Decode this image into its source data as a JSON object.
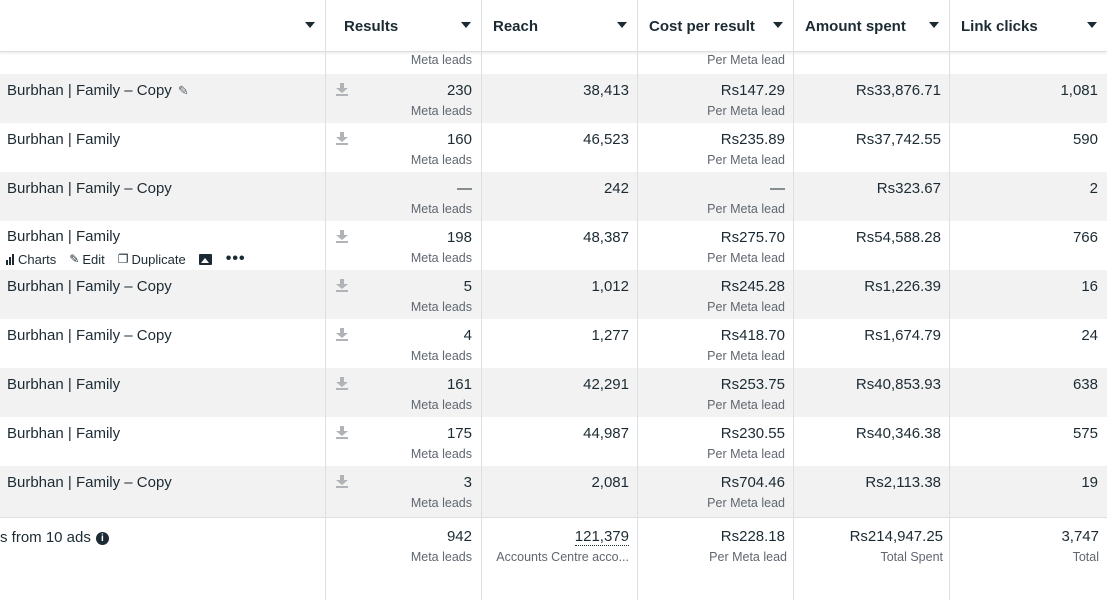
{
  "columns": {
    "first": "",
    "results": "Results",
    "reach": "Reach",
    "cost_per_result": "Cost per result",
    "amount_spent": "Amount spent",
    "link_clicks": "Link clicks"
  },
  "top_partial": {
    "results_sub": "Meta leads",
    "cost_sub": "Per Meta lead"
  },
  "rows": [
    {
      "name": "Burbhan | Family – Copy",
      "results": "230",
      "results_sub": "Meta leads",
      "reach": "38,413",
      "cost": "Rs147.29",
      "cost_sub": "Per Meta lead",
      "spent": "Rs33,876.71",
      "clicks": "1,081"
    },
    {
      "name": "Burbhan | Family",
      "results": "160",
      "results_sub": "Meta leads",
      "reach": "46,523",
      "cost": "Rs235.89",
      "cost_sub": "Per Meta lead",
      "spent": "Rs37,742.55",
      "clicks": "590"
    },
    {
      "name": "Burbhan | Family – Copy",
      "results": "—",
      "results_sub": "Meta leads",
      "reach": "242",
      "cost": "—",
      "cost_sub": "Per Meta lead",
      "spent": "Rs323.67",
      "clicks": "2"
    },
    {
      "name": "Burbhan | Family",
      "results": "198",
      "results_sub": "Meta leads",
      "reach": "48,387",
      "cost": "Rs275.70",
      "cost_sub": "Per Meta lead",
      "spent": "Rs54,588.28",
      "clicks": "766"
    },
    {
      "name": "Burbhan | Family – Copy",
      "results": "5",
      "results_sub": "Meta leads",
      "reach": "1,012",
      "cost": "Rs245.28",
      "cost_sub": "Per Meta lead",
      "spent": "Rs1,226.39",
      "clicks": "16"
    },
    {
      "name": "Burbhan | Family – Copy",
      "results": "4",
      "results_sub": "Meta leads",
      "reach": "1,277",
      "cost": "Rs418.70",
      "cost_sub": "Per Meta lead",
      "spent": "Rs1,674.79",
      "clicks": "24"
    },
    {
      "name": "Burbhan | Family",
      "results": "161",
      "results_sub": "Meta leads",
      "reach": "42,291",
      "cost": "Rs253.75",
      "cost_sub": "Per Meta lead",
      "spent": "Rs40,853.93",
      "clicks": "638"
    },
    {
      "name": "Burbhan | Family",
      "results": "175",
      "results_sub": "Meta leads",
      "reach": "44,987",
      "cost": "Rs230.55",
      "cost_sub": "Per Meta lead",
      "spent": "Rs40,346.38",
      "clicks": "575"
    },
    {
      "name": "Burbhan | Family – Copy",
      "results": "3",
      "results_sub": "Meta leads",
      "reach": "2,081",
      "cost": "Rs704.46",
      "cost_sub": "Per Meta lead",
      "spent": "Rs2,113.38",
      "clicks": "19"
    }
  ],
  "row_actions": {
    "charts": "Charts",
    "edit": "Edit",
    "duplicate": "Duplicate",
    "more": "•••"
  },
  "totals": {
    "label": "s from 10 ads",
    "results": "942",
    "results_sub": "Meta leads",
    "reach": "121,379",
    "reach_sub": "Accounts Centre acco...",
    "cost": "Rs228.18",
    "cost_sub": "Per Meta lead",
    "spent": "Rs214,947.25",
    "spent_sub": "Total Spent",
    "clicks": "3,747",
    "clicks_sub": "Total"
  }
}
